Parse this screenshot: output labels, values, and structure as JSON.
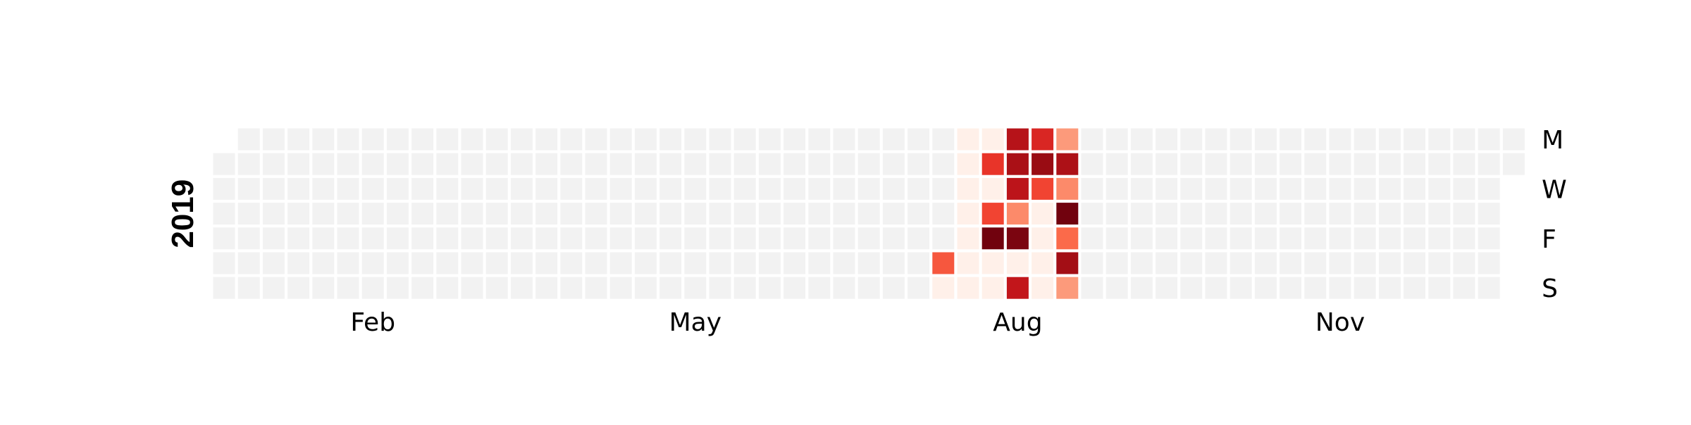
{
  "chart_data": {
    "type": "heatmap",
    "title": "",
    "year": "2019",
    "x_tick_labels": [
      "Feb",
      "May",
      "Aug",
      "Nov"
    ],
    "y_tick_labels": [
      "M",
      "W",
      "F",
      "S"
    ],
    "empty_color": "#f2f2f2",
    "colormap": [
      "#fff5f0",
      "#fee0d2",
      "#fcbba1",
      "#fc9272",
      "#fb6a4a",
      "#ef3b2c",
      "#cb181d",
      "#a50f15",
      "#67000d"
    ],
    "grid": false,
    "legend": "none",
    "cells": [
      {
        "date": "2019-07-27",
        "level": 0.55
      },
      {
        "date": "2019-07-28",
        "level": 0.03
      },
      {
        "date": "2019-07-29",
        "level": 0.03
      },
      {
        "date": "2019-07-30",
        "level": 0.03
      },
      {
        "date": "2019-07-31",
        "level": 0.03
      },
      {
        "date": "2019-08-01",
        "level": 0.03
      },
      {
        "date": "2019-08-02",
        "level": 0.03
      },
      {
        "date": "2019-08-03",
        "level": 0.03
      },
      {
        "date": "2019-08-04",
        "level": 0.03
      },
      {
        "date": "2019-08-05",
        "level": 0.03
      },
      {
        "date": "2019-08-06",
        "level": 0.65
      },
      {
        "date": "2019-08-07",
        "level": 0.03
      },
      {
        "date": "2019-08-08",
        "level": 0.6
      },
      {
        "date": "2019-08-09",
        "level": 0.98
      },
      {
        "date": "2019-08-10",
        "level": 0.03
      },
      {
        "date": "2019-08-11",
        "level": 0.03
      },
      {
        "date": "2019-08-12",
        "level": 0.82
      },
      {
        "date": "2019-08-13",
        "level": 0.86
      },
      {
        "date": "2019-08-14",
        "level": 0.8
      },
      {
        "date": "2019-08-15",
        "level": 0.4
      },
      {
        "date": "2019-08-16",
        "level": 0.96
      },
      {
        "date": "2019-08-17",
        "level": 0.03
      },
      {
        "date": "2019-08-18",
        "level": 0.78
      },
      {
        "date": "2019-08-19",
        "level": 0.7
      },
      {
        "date": "2019-08-20",
        "level": 0.9
      },
      {
        "date": "2019-08-21",
        "level": 0.6
      },
      {
        "date": "2019-08-22",
        "level": 0.03
      },
      {
        "date": "2019-08-23",
        "level": 0.03
      },
      {
        "date": "2019-08-24",
        "level": 0.03
      },
      {
        "date": "2019-08-25",
        "level": 0.03
      },
      {
        "date": "2019-08-26",
        "level": 0.35
      },
      {
        "date": "2019-08-27",
        "level": 0.85
      },
      {
        "date": "2019-08-28",
        "level": 0.4
      },
      {
        "date": "2019-08-29",
        "level": 0.98
      },
      {
        "date": "2019-08-30",
        "level": 0.5
      },
      {
        "date": "2019-08-31",
        "level": 0.88
      },
      {
        "date": "2019-09-01",
        "level": 0.35
      }
    ]
  }
}
